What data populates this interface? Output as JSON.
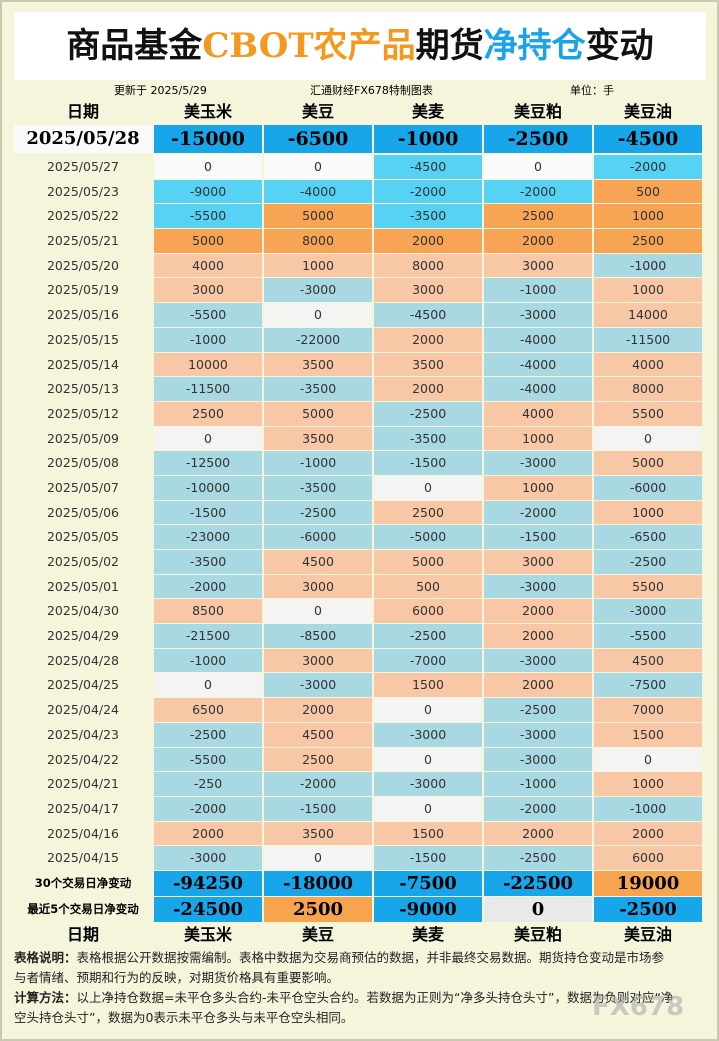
{
  "header": {
    "title": [
      "商品基金",
      "CBOT农产品",
      "期货",
      "净持仓",
      "变动"
    ],
    "updated": "更新于 2025/5/29",
    "source": "汇通财经FX678特制图表",
    "unit": "单位：手"
  },
  "table": {
    "columns": [
      "日期",
      "美玉米",
      "美豆",
      "美麦",
      "美豆粕",
      "美豆油"
    ],
    "latest": {
      "date": "2025/05/28",
      "values": [
        -15000,
        -6500,
        -1000,
        -2500,
        -4500
      ]
    },
    "rows": [
      [
        "2025/05/27",
        0,
        0,
        -4500,
        0,
        -2000
      ],
      [
        "2025/05/23",
        -9000,
        -4000,
        -2000,
        -2000,
        500
      ],
      [
        "2025/05/22",
        -5500,
        5000,
        -3500,
        2500,
        1000
      ],
      [
        "2025/05/21",
        5000,
        8000,
        2000,
        2000,
        2500
      ],
      [
        "2025/05/20",
        4000,
        1000,
        8000,
        3000,
        -1000
      ],
      [
        "2025/05/19",
        3000,
        -3000,
        3000,
        -1000,
        1000
      ],
      [
        "2025/05/16",
        -5500,
        0,
        -4500,
        -3000,
        14000
      ],
      [
        "2025/05/15",
        -1000,
        -22000,
        2000,
        -4000,
        -11500
      ],
      [
        "2025/05/14",
        10000,
        3500,
        3500,
        -4000,
        4000
      ],
      [
        "2025/05/13",
        -11500,
        -3500,
        2000,
        -4000,
        8000
      ],
      [
        "2025/05/12",
        2500,
        5000,
        -2500,
        4000,
        5500
      ],
      [
        "2025/05/09",
        0,
        3500,
        -3500,
        1000,
        0
      ],
      [
        "2025/05/08",
        -12500,
        -1000,
        -1500,
        -3000,
        5000
      ],
      [
        "2025/05/07",
        -10000,
        -3500,
        0,
        1000,
        -6000
      ],
      [
        "2025/05/06",
        -1500,
        -2500,
        2500,
        -2000,
        1000
      ],
      [
        "2025/05/05",
        -23000,
        -6000,
        -5000,
        -1500,
        -6500
      ],
      [
        "2025/05/02",
        -3500,
        4500,
        5000,
        3000,
        -2500
      ],
      [
        "2025/05/01",
        -2000,
        3000,
        500,
        -3000,
        5500
      ],
      [
        "2025/04/30",
        8500,
        0,
        6000,
        2000,
        -3000
      ],
      [
        "2025/04/29",
        -21500,
        -8500,
        -2500,
        2000,
        -5500
      ],
      [
        "2025/04/28",
        -1000,
        3000,
        -7000,
        -3000,
        4500
      ],
      [
        "2025/04/25",
        0,
        -3000,
        1500,
        2000,
        -7500
      ],
      [
        "2025/04/24",
        6500,
        2000,
        0,
        -2500,
        7000
      ],
      [
        "2025/04/23",
        -2500,
        4500,
        -3000,
        -3000,
        1500
      ],
      [
        "2025/04/22",
        -5500,
        2500,
        0,
        -3000,
        0
      ],
      [
        "2025/04/21",
        -250,
        -2000,
        -3000,
        -1000,
        1000
      ],
      [
        "2025/04/17",
        -2000,
        -1500,
        0,
        -2000,
        -1000
      ],
      [
        "2025/04/16",
        2000,
        3500,
        1500,
        2000,
        2000
      ],
      [
        "2025/04/15",
        -3000,
        0,
        -1500,
        -2500,
        6000
      ]
    ],
    "summary": [
      [
        "30个交易日净变动",
        -94250,
        -18000,
        -7500,
        -22500,
        19000
      ],
      [
        "最近5个交易日净变动",
        -24500,
        2500,
        -9000,
        0,
        -2500
      ]
    ]
  },
  "notes": [
    {
      "label": "表格说明：",
      "text": "表格根据公开数据按需编制。表格中数据为交易商预估的数据，并非最终交易数据。期货持仓变动是市场参与者情绪、预期和行为的反映，对期货价格具有重要影响。"
    },
    {
      "label": "计算方法：",
      "text": "以上净持仓数据=未平仓多头合约-未平仓空头合约。若数据为正则为“净多头持仓头寸”，数据为负则对应“净空头持仓头寸”，数据为0表示未平仓多头与未平仓空头相同。"
    }
  ],
  "watermark": "FX678"
}
